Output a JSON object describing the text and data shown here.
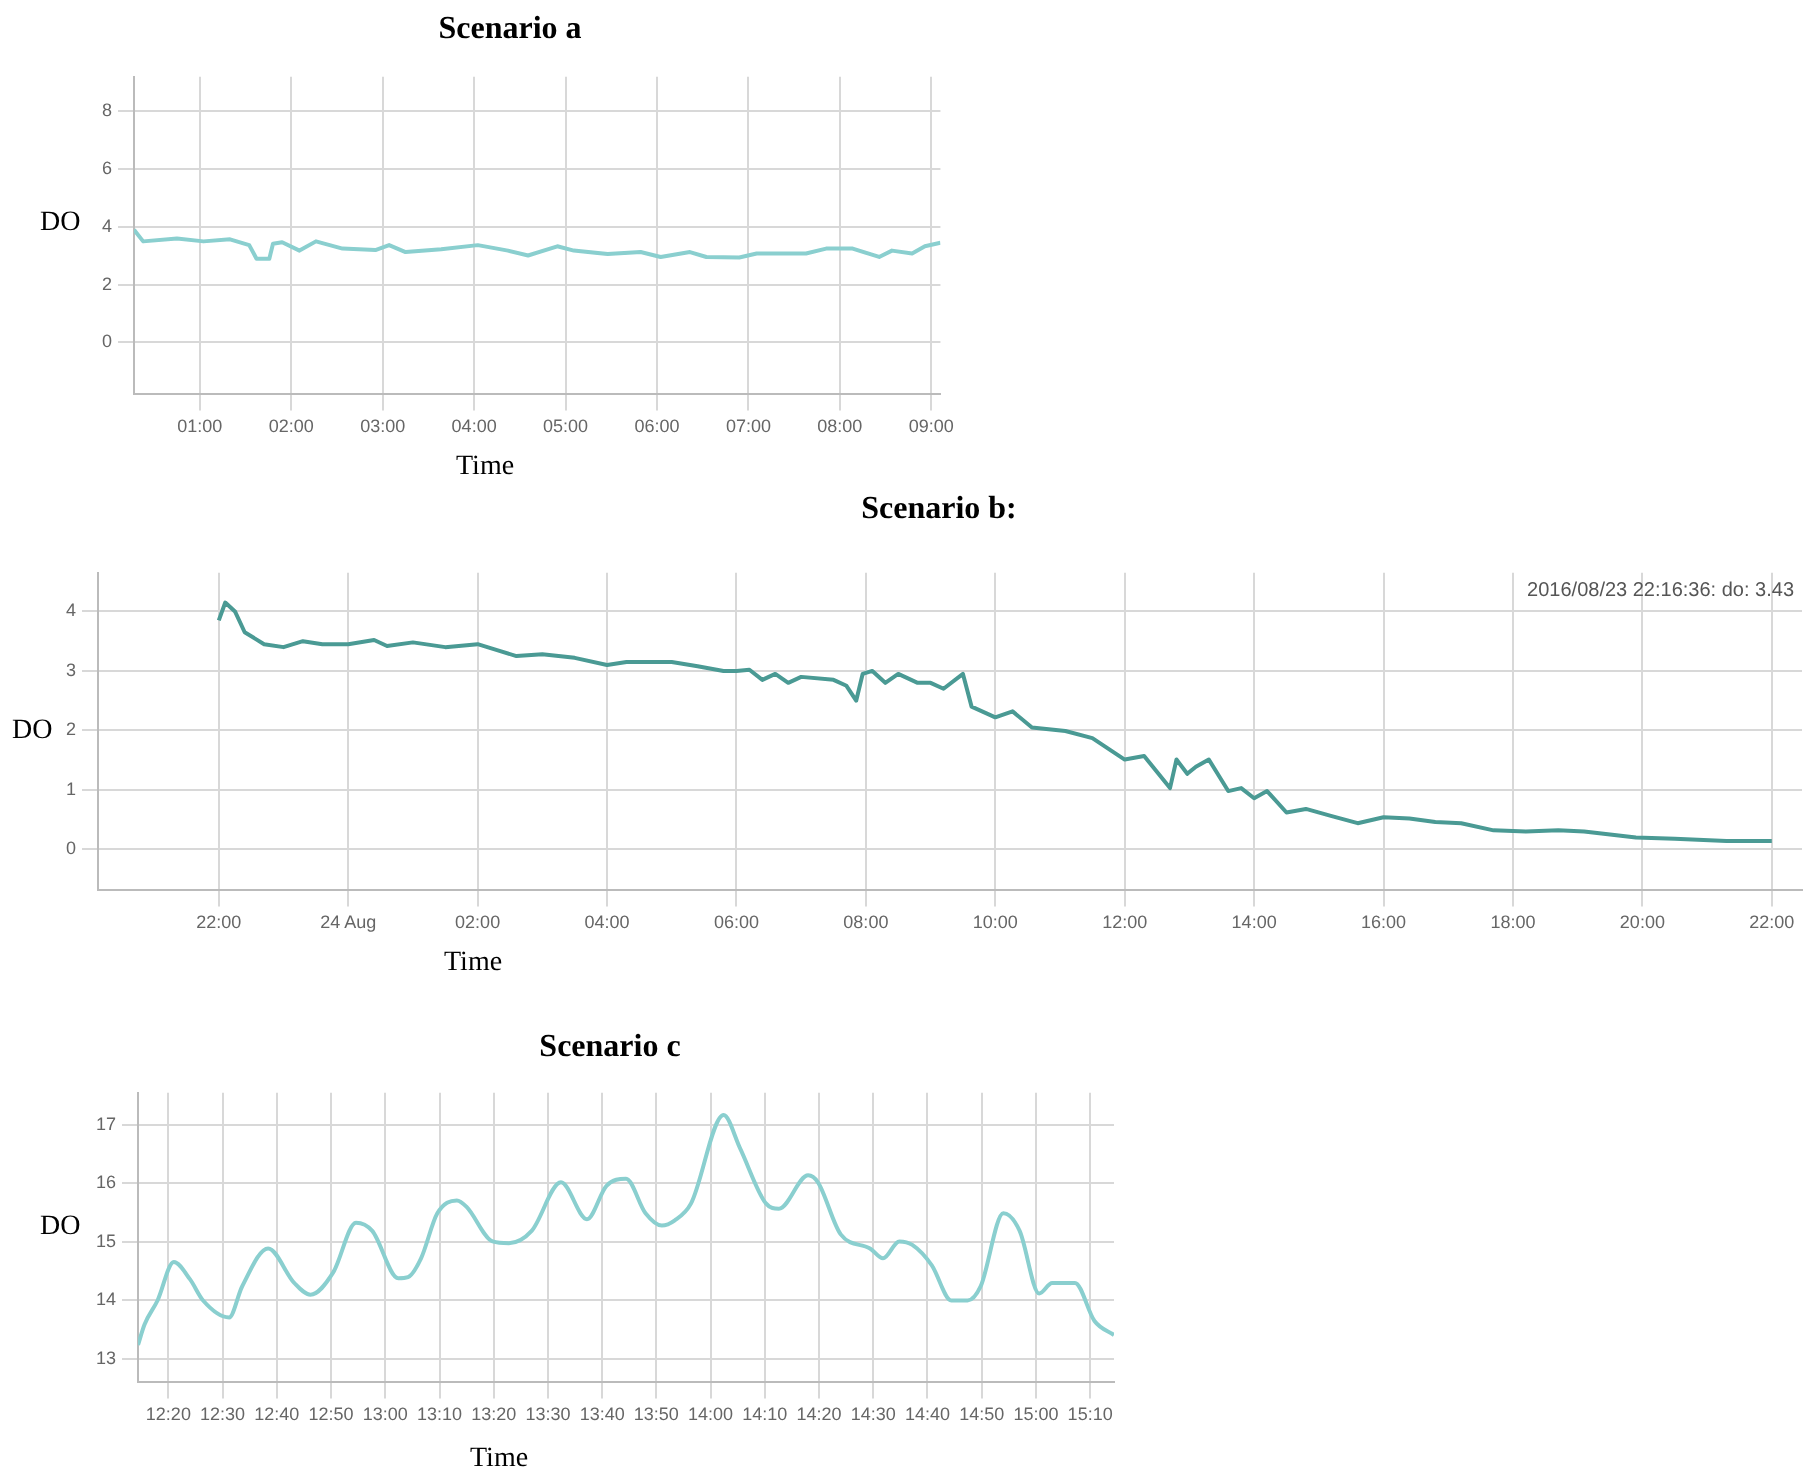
{
  "chart_data": [
    {
      "type": "line",
      "title": "Scenario a",
      "xlabel": "Time",
      "ylabel": "DO",
      "grid": true,
      "legend": false,
      "marker": "none",
      "line_style": "solid",
      "xlim": [
        0.28,
        9.1
      ],
      "xticks": [
        {
          "value": 1,
          "label": "01:00"
        },
        {
          "value": 2,
          "label": "02:00"
        },
        {
          "value": 3,
          "label": "03:00"
        },
        {
          "value": 4,
          "label": "04:00"
        },
        {
          "value": 5,
          "label": "05:00"
        },
        {
          "value": 6,
          "label": "06:00"
        },
        {
          "value": 7,
          "label": "07:00"
        },
        {
          "value": 8,
          "label": "08:00"
        },
        {
          "value": 9,
          "label": "09:00"
        }
      ],
      "ylim": [
        -1.8,
        9.2
      ],
      "yticks": [
        0,
        2,
        4,
        6,
        8
      ],
      "series": [
        {
          "color": "#8acfcf",
          "x": [
            0.28,
            0.38,
            0.75,
            1.04,
            1.33,
            1.54,
            1.62,
            1.76,
            1.8,
            1.9,
            2.09,
            2.27,
            2.56,
            2.92,
            3.07,
            3.25,
            3.64,
            4.04,
            4.37,
            4.59,
            4.91,
            5.09,
            5.46,
            5.82,
            6.04,
            6.36,
            6.54,
            6.9,
            7.09,
            7.63,
            7.85,
            8.14,
            8.43,
            8.57,
            8.79,
            8.93,
            9.1
          ],
          "values": [
            3.9,
            3.5,
            3.6,
            3.5,
            3.57,
            3.37,
            2.9,
            2.9,
            3.42,
            3.47,
            3.18,
            3.5,
            3.25,
            3.2,
            3.37,
            3.13,
            3.23,
            3.37,
            3.18,
            3.01,
            3.33,
            3.18,
            3.06,
            3.13,
            2.96,
            3.13,
            2.96,
            2.94,
            3.08,
            3.08,
            3.25,
            3.25,
            2.96,
            3.18,
            3.08,
            3.33,
            3.45
          ]
        }
      ]
    },
    {
      "type": "line",
      "title": "Scenario b:",
      "xlabel": "Time",
      "ylabel": "DO",
      "grid": true,
      "legend": false,
      "marker": "none",
      "line_style": "solid",
      "annotations": [
        "2016/08/23 22:16:36: do: 3.43"
      ],
      "xlim": [
        "2016-08-23T20:08",
        "2016-08-24T22:28"
      ],
      "xticks": [
        {
          "value": "2016-08-23T22:00",
          "label": "22:00"
        },
        {
          "value": "2016-08-24T00:00",
          "label": "24 Aug"
        },
        {
          "value": "2016-08-24T02:00",
          "label": "02:00"
        },
        {
          "value": "2016-08-24T04:00",
          "label": "04:00"
        },
        {
          "value": "2016-08-24T06:00",
          "label": "06:00"
        },
        {
          "value": "2016-08-24T08:00",
          "label": "08:00"
        },
        {
          "value": "2016-08-24T10:00",
          "label": "10:00"
        },
        {
          "value": "2016-08-24T12:00",
          "label": "12:00"
        },
        {
          "value": "2016-08-24T14:00",
          "label": "14:00"
        },
        {
          "value": "2016-08-24T16:00",
          "label": "16:00"
        },
        {
          "value": "2016-08-24T18:00",
          "label": "18:00"
        },
        {
          "value": "2016-08-24T20:00",
          "label": "20:00"
        },
        {
          "value": "2016-08-24T22:00",
          "label": "22:00"
        }
      ],
      "ylim": [
        -0.69,
        4.65
      ],
      "yticks": [
        0,
        1,
        2,
        3,
        4
      ],
      "series": [
        {
          "color": "#4a9a94",
          "x": [
            "2016-08-23T22:00",
            "2016-08-23T22:06",
            "2016-08-23T22:15",
            "2016-08-23T22:24",
            "2016-08-23T22:42",
            "2016-08-23T23:00",
            "2016-08-23T23:18",
            "2016-08-23T23:36",
            "2016-08-24T00:00",
            "2016-08-24T00:24",
            "2016-08-24T00:36",
            "2016-08-24T01:00",
            "2016-08-24T01:30",
            "2016-08-24T02:00",
            "2016-08-24T02:18",
            "2016-08-24T02:36",
            "2016-08-24T03:00",
            "2016-08-24T03:30",
            "2016-08-24T04:00",
            "2016-08-24T04:18",
            "2016-08-24T04:42",
            "2016-08-24T05:00",
            "2016-08-24T05:24",
            "2016-08-24T05:48",
            "2016-08-24T06:00",
            "2016-08-24T06:12",
            "2016-08-24T06:24",
            "2016-08-24T06:36",
            "2016-08-24T06:48",
            "2016-08-24T07:00",
            "2016-08-24T07:30",
            "2016-08-24T07:42",
            "2016-08-24T07:51",
            "2016-08-24T07:57",
            "2016-08-24T08:06",
            "2016-08-24T08:18",
            "2016-08-24T08:30",
            "2016-08-24T08:48",
            "2016-08-24T09:00",
            "2016-08-24T09:12",
            "2016-08-24T09:30",
            "2016-08-24T09:38",
            "2016-08-24T10:00",
            "2016-08-24T10:16",
            "2016-08-24T10:34",
            "2016-08-24T11:05",
            "2016-08-24T11:30",
            "2016-08-24T12:00",
            "2016-08-24T12:18",
            "2016-08-24T12:42",
            "2016-08-24T12:48",
            "2016-08-24T12:58",
            "2016-08-24T13:06",
            "2016-08-24T13:18",
            "2016-08-24T13:36",
            "2016-08-24T13:48",
            "2016-08-24T14:00",
            "2016-08-24T14:12",
            "2016-08-24T14:30",
            "2016-08-24T14:48",
            "2016-08-24T15:12",
            "2016-08-24T15:36",
            "2016-08-24T16:00",
            "2016-08-24T16:24",
            "2016-08-24T16:48",
            "2016-08-24T17:12",
            "2016-08-24T17:42",
            "2016-08-24T18:12",
            "2016-08-24T18:42",
            "2016-08-24T19:06",
            "2016-08-24T19:54",
            "2016-08-24T20:30",
            "2016-08-24T21:18",
            "2016-08-24T22:00"
          ],
          "values": [
            3.85,
            4.15,
            4.0,
            3.65,
            3.45,
            3.4,
            3.5,
            3.45,
            3.45,
            3.52,
            3.42,
            3.48,
            3.4,
            3.45,
            3.35,
            3.25,
            3.28,
            3.22,
            3.1,
            3.15,
            3.15,
            3.15,
            3.08,
            3.0,
            3.0,
            3.02,
            2.85,
            2.95,
            2.8,
            2.9,
            2.85,
            2.75,
            2.5,
            2.95,
            3.0,
            2.8,
            2.95,
            2.8,
            2.8,
            2.7,
            2.95,
            2.4,
            2.22,
            2.32,
            2.05,
            1.99,
            1.87,
            1.51,
            1.57,
            1.03,
            1.51,
            1.27,
            1.39,
            1.51,
            0.98,
            1.03,
            0.86,
            0.98,
            0.62,
            0.68,
            0.56,
            0.44,
            0.54,
            0.52,
            0.46,
            0.44,
            0.32,
            0.3,
            0.32,
            0.3,
            0.2,
            0.18,
            0.14,
            0.14
          ]
        }
      ]
    },
    {
      "type": "line",
      "title": "Scenario c",
      "xlabel": "Time",
      "ylabel": "DO",
      "grid": true,
      "legend": false,
      "marker": "none",
      "line_style": "solid",
      "xlim": [
        12.24,
        15.24
      ],
      "xticks": [
        {
          "value": 12.3333,
          "label": "12:20"
        },
        {
          "value": 12.5,
          "label": "12:30"
        },
        {
          "value": 12.6667,
          "label": "12:40"
        },
        {
          "value": 12.8333,
          "label": "12:50"
        },
        {
          "value": 13,
          "label": "13:00"
        },
        {
          "value": 13.1667,
          "label": "13:10"
        },
        {
          "value": 13.3333,
          "label": "13:20"
        },
        {
          "value": 13.5,
          "label": "13:30"
        },
        {
          "value": 13.6667,
          "label": "13:40"
        },
        {
          "value": 13.8333,
          "label": "13:50"
        },
        {
          "value": 14,
          "label": "14:00"
        },
        {
          "value": 14.1667,
          "label": "14:10"
        },
        {
          "value": 14.3333,
          "label": "14:20"
        },
        {
          "value": 14.5,
          "label": "14:30"
        },
        {
          "value": 14.6667,
          "label": "14:40"
        },
        {
          "value": 14.8333,
          "label": "14:50"
        },
        {
          "value": 15,
          "label": "15:00"
        },
        {
          "value": 15.1667,
          "label": "15:10"
        }
      ],
      "ylim": [
        12.6,
        17.55
      ],
      "yticks": [
        13,
        14,
        15,
        16,
        17
      ],
      "series": [
        {
          "color": "#8acfcf",
          "x": [
            12.24,
            12.26,
            12.3,
            12.35,
            12.4,
            12.44,
            12.52,
            12.56,
            12.64,
            12.72,
            12.77,
            12.84,
            12.91,
            12.96,
            13.04,
            13.07,
            13.11,
            13.16,
            13.22,
            13.25,
            13.33,
            13.38,
            13.45,
            13.54,
            13.62,
            13.68,
            13.74,
            13.8,
            13.85,
            13.89,
            13.94,
            14.04,
            14.09,
            14.17,
            14.21,
            14.3,
            14.33,
            14.4,
            14.49,
            14.53,
            14.58,
            14.62,
            14.68,
            14.74,
            14.79,
            14.83,
            14.9,
            14.95,
            15.01,
            15.05,
            15.12,
            15.18,
            15.24
          ],
          "values": [
            13.24,
            13.59,
            14.0,
            14.66,
            14.36,
            14.0,
            13.71,
            14.24,
            14.89,
            14.3,
            14.1,
            14.48,
            15.33,
            15.19,
            14.38,
            14.4,
            14.72,
            15.49,
            15.71,
            15.6,
            15.01,
            14.98,
            15.19,
            16.02,
            15.39,
            15.96,
            16.08,
            15.49,
            15.28,
            15.37,
            15.66,
            17.17,
            16.61,
            15.66,
            15.57,
            16.14,
            16.02,
            15.13,
            14.89,
            14.72,
            15.01,
            14.95,
            14.6,
            14.0,
            14.0,
            14.24,
            15.49,
            15.19,
            14.12,
            14.3,
            14.3,
            13.65,
            13.41
          ]
        }
      ]
    }
  ]
}
